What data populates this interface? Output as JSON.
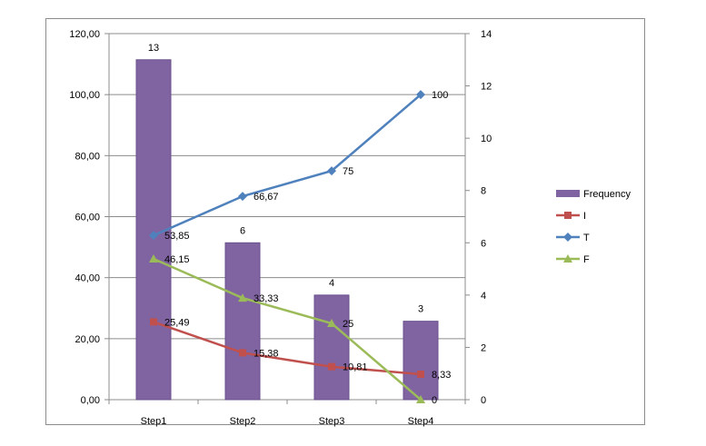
{
  "chart_data": {
    "type": "bar",
    "categories": [
      "Step1",
      "Step2",
      "Step3",
      "Step4"
    ],
    "left_axis": {
      "min": 0,
      "max": 120,
      "step": 20,
      "tick_format": "2dec_comma"
    },
    "right_axis": {
      "min": 0,
      "max": 14,
      "step": 2
    },
    "grid": true,
    "legend_position": "right",
    "bar_series": {
      "name": "Frequency",
      "axis": "right",
      "color": "#8064a2",
      "values": [
        13,
        6,
        4,
        3
      ],
      "labels": [
        "13",
        "6",
        "4",
        "3"
      ]
    },
    "line_series": [
      {
        "name": "I",
        "axis": "left",
        "color": "#c0504d",
        "marker": "square",
        "values": [
          25.49,
          15.38,
          10.81,
          8.33
        ],
        "labels": [
          "25,49",
          "15,38",
          "10,81",
          "8,33"
        ]
      },
      {
        "name": "T",
        "axis": "left",
        "color": "#4f81bd",
        "marker": "diamond",
        "values": [
          53.85,
          66.67,
          75,
          100
        ],
        "labels": [
          "53,85",
          "66,67",
          "75",
          "100"
        ]
      },
      {
        "name": "F",
        "axis": "left",
        "color": "#9bbb59",
        "marker": "triangle",
        "values": [
          46.15,
          33.33,
          25,
          0
        ],
        "labels": [
          "46,15",
          "33,33",
          "25",
          "0"
        ]
      }
    ]
  }
}
